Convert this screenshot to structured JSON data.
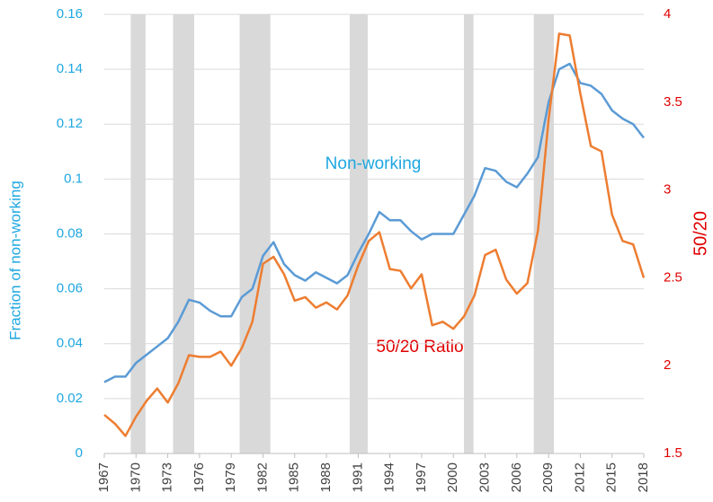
{
  "chart_data": {
    "type": "line",
    "x": [
      1967,
      1968,
      1969,
      1970,
      1971,
      1972,
      1973,
      1974,
      1975,
      1976,
      1977,
      1978,
      1979,
      1980,
      1981,
      1982,
      1983,
      1984,
      1985,
      1986,
      1987,
      1988,
      1989,
      1990,
      1991,
      1992,
      1993,
      1994,
      1995,
      1996,
      1997,
      1998,
      1999,
      2000,
      2001,
      2002,
      2003,
      2004,
      2005,
      2006,
      2007,
      2008,
      2009,
      2010,
      2011,
      2012,
      2013,
      2014,
      2015,
      2016,
      2017,
      2018
    ],
    "series": [
      {
        "name": "Non-working",
        "color": "#5b9bd5",
        "axis": "y",
        "values": [
          0.026,
          0.028,
          0.028,
          0.033,
          0.036,
          0.039,
          0.042,
          0.048,
          0.056,
          0.055,
          0.052,
          0.05,
          0.05,
          0.057,
          0.06,
          0.072,
          0.077,
          0.069,
          0.065,
          0.063,
          0.066,
          0.064,
          0.062,
          0.065,
          0.073,
          0.08,
          0.088,
          0.085,
          0.085,
          0.081,
          0.078,
          0.08,
          0.08,
          0.08,
          0.087,
          0.094,
          0.104,
          0.103,
          0.099,
          0.097,
          0.102,
          0.108,
          0.128,
          0.14,
          0.142,
          0.135,
          0.134,
          0.131,
          0.125,
          0.122,
          0.12,
          0.115
        ]
      },
      {
        "name": "50/20 Ratio",
        "color": "#ed7d31",
        "axis": "y2",
        "values": [
          1.72,
          1.67,
          1.6,
          1.71,
          1.8,
          1.87,
          1.79,
          1.9,
          2.06,
          2.05,
          2.05,
          2.08,
          2.0,
          2.1,
          2.25,
          2.58,
          2.62,
          2.52,
          2.37,
          2.39,
          2.33,
          2.36,
          2.32,
          2.4,
          2.57,
          2.71,
          2.76,
          2.55,
          2.54,
          2.44,
          2.52,
          2.23,
          2.25,
          2.21,
          2.28,
          2.4,
          2.63,
          2.66,
          2.49,
          2.41,
          2.47,
          2.77,
          3.4,
          3.89,
          3.88,
          3.55,
          3.25,
          3.22,
          2.86,
          2.71,
          2.69,
          2.5
        ]
      }
    ],
    "shaded_ranges": [
      [
        1969.5,
        1970.9
      ],
      [
        1973.5,
        1975.5
      ],
      [
        1979.8,
        1982.7
      ],
      [
        1990.2,
        1991.9
      ],
      [
        2001.0,
        2001.9
      ],
      [
        2007.6,
        2009.5
      ]
    ],
    "xlim": [
      1967,
      2018
    ],
    "xticks": [
      1967,
      1970,
      1973,
      1976,
      1979,
      1982,
      1985,
      1988,
      1991,
      1994,
      1997,
      2000,
      2003,
      2006,
      2009,
      2012,
      2015,
      2018
    ],
    "ylim": [
      0,
      0.16
    ],
    "yticks": [
      0,
      0.02,
      0.04,
      0.06,
      0.08,
      0.1,
      0.12,
      0.14,
      0.16
    ],
    "y2lim": [
      1.5,
      4
    ],
    "y2ticks": [
      1.5,
      2,
      2.5,
      3,
      3.5,
      4
    ],
    "ylabel": "Fraction of non-working",
    "y2label": "50/20",
    "grid": true
  }
}
